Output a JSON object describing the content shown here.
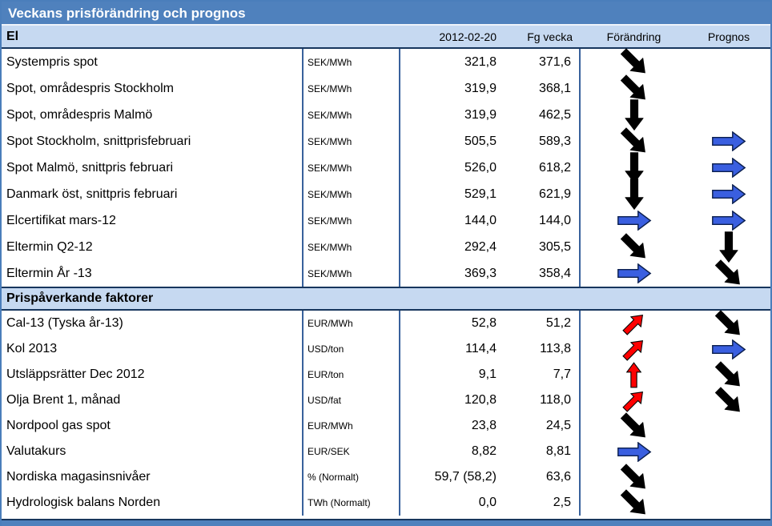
{
  "title": "Veckans prisförändring och prognos",
  "columns": {
    "date": "2012-02-20",
    "prev_week": "Fg vecka",
    "change": "Förändring",
    "forecast": "Prognos"
  },
  "colors": {
    "header_blue": "#4f81bd",
    "band_blue": "#c6d9f1",
    "border_navy": "#17365d",
    "divider_blue": "#38619c",
    "arrow_blue": "#3a5fe0",
    "arrow_red": "#fe0000",
    "arrow_black": "#000000"
  },
  "sections": [
    {
      "name": "El",
      "rows": [
        {
          "label": "Systempris spot",
          "unit": "SEK/MWh",
          "value": "321,8",
          "prev": "371,6",
          "change": "black:down-diag",
          "forecast": null
        },
        {
          "label": "Spot, områdespris Stockholm",
          "unit": "SEK/MWh",
          "value": "319,9",
          "prev": "368,1",
          "change": "black:down-diag",
          "forecast": null
        },
        {
          "label": "Spot, områdespris Malmö",
          "unit": "SEK/MWh",
          "value": "319,9",
          "prev": "462,5",
          "change": "black:down",
          "forecast": null
        },
        {
          "label": "Spot Stockholm, snittprisfebruari",
          "unit": "SEK/MWh",
          "value": "505,5",
          "prev": "589,3",
          "change": "black:down-diag",
          "forecast": "blue:right"
        },
        {
          "label": "Spot Malmö, snittpris februari",
          "unit": "SEK/MWh",
          "value": "526,0",
          "prev": "618,2",
          "change": "black:down",
          "forecast": "blue:right"
        },
        {
          "label": "Danmark öst, snittpris februari",
          "unit": "SEK/MWh",
          "value": "529,1",
          "prev": "621,9",
          "change": "black:down",
          "forecast": "blue:right"
        },
        {
          "label": "Elcertifikat mars-12",
          "unit": "SEK/MWh",
          "value": "144,0",
          "prev": "144,0",
          "change": "blue:right",
          "forecast": "blue:right"
        },
        {
          "label": "Eltermin Q2-12",
          "unit": "SEK/MWh",
          "value": "292,4",
          "prev": "305,5",
          "change": "black:down-diag",
          "forecast": "black:down"
        },
        {
          "label": "Eltermin År -13",
          "unit": "SEK/MWh",
          "value": "369,3",
          "prev": "358,4",
          "change": "blue:right",
          "forecast": "black:down-diag"
        }
      ]
    },
    {
      "name": "Prispåverkande faktorer",
      "rows": [
        {
          "label": "Cal-13 (Tyska år-13)",
          "unit": "EUR/MWh",
          "value": "52,8",
          "prev": "51,2",
          "change": "red:up-diag",
          "forecast": "black:down-diag"
        },
        {
          "label": "Kol 2013",
          "unit": "USD/ton",
          "value": "114,4",
          "prev": "113,8",
          "change": "red:up-diag",
          "forecast": "blue:right"
        },
        {
          "label": "Utsläppsrätter Dec 2012",
          "unit": "EUR/ton",
          "value": "9,1",
          "prev": "7,7",
          "change": "red:up",
          "forecast": "black:down-diag"
        },
        {
          "label": "Olja Brent 1, månad",
          "unit": "USD/fat",
          "value": "120,8",
          "prev": "118,0",
          "change": "red:up-diag",
          "forecast": "black:down-diag"
        },
        {
          "label": "Nordpool gas spot",
          "unit": "EUR/MWh",
          "value": "23,8",
          "prev": "24,5",
          "change": "black:down-diag",
          "forecast": null
        },
        {
          "label": "Valutakurs",
          "unit": "EUR/SEK",
          "value": "8,82",
          "prev": "8,81",
          "change": "blue:right",
          "forecast": null
        },
        {
          "label": "Nordiska magasinsnivåer",
          "unit": "% (Normalt)",
          "value": "59,7 (58,2)",
          "prev": "63,6",
          "change": "black:down-diag",
          "forecast": null
        },
        {
          "label": "Hydrologisk balans Norden",
          "unit": "TWh (Normalt)",
          "value": "0,0",
          "prev": "2,5",
          "change": "black:down-diag",
          "forecast": null
        }
      ]
    }
  ]
}
